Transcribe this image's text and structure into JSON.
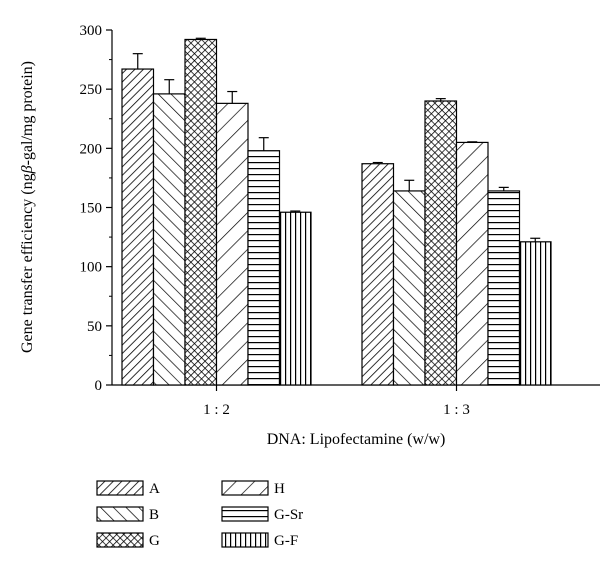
{
  "chart_data": {
    "type": "bar",
    "xlabel": "DNA: Lipofectamine (w/w)",
    "ylabel_parts": [
      "Gene transfer efficiency (ng",
      "β",
      "-gal/mg protein)"
    ],
    "ylim": [
      0,
      300
    ],
    "yticks": [
      0,
      50,
      100,
      150,
      200,
      250,
      300
    ],
    "categories": [
      "1 : 2",
      "1 : 3"
    ],
    "grid": false,
    "legend_position": "bottom",
    "series": [
      {
        "name": "A",
        "pattern": "diag-up-dense",
        "values": [
          267,
          187
        ],
        "errors": [
          13,
          1
        ]
      },
      {
        "name": "B",
        "pattern": "diag-down",
        "values": [
          246,
          164
        ],
        "errors": [
          12,
          9
        ]
      },
      {
        "name": "G",
        "pattern": "crosshatch",
        "values": [
          292,
          240
        ],
        "errors": [
          1,
          2
        ]
      },
      {
        "name": "H",
        "pattern": "diag-up-sparse",
        "values": [
          238,
          205
        ],
        "errors": [
          10,
          0.5
        ]
      },
      {
        "name": "G-Sr",
        "pattern": "horizontal",
        "values": [
          198,
          164
        ],
        "errors": [
          11,
          3
        ]
      },
      {
        "name": "G-F",
        "pattern": "vertical",
        "values": [
          146,
          121
        ],
        "errors": [
          1,
          3
        ]
      }
    ]
  }
}
